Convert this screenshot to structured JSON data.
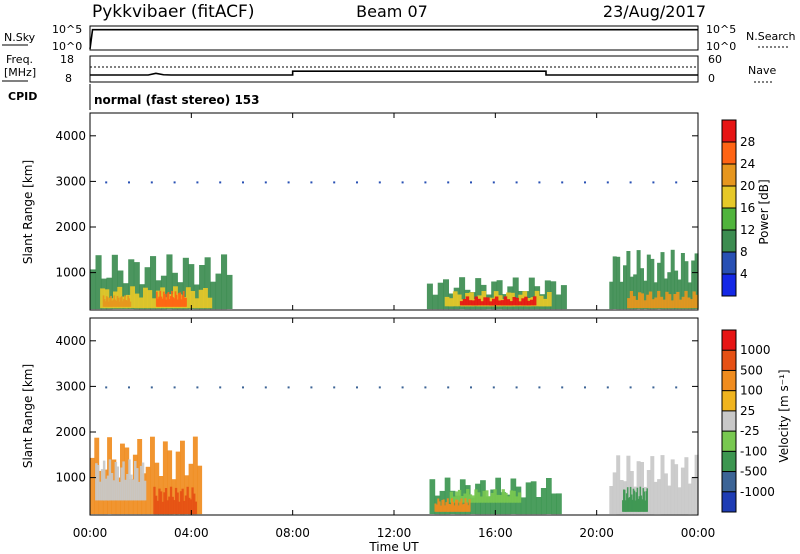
{
  "header": {
    "radar": "Pykkvibaer (fitACF)",
    "beam": "Beam 07",
    "date": "23/Aug/2017"
  },
  "strips": {
    "nsky_label": "N.Sky",
    "nsky_ticks": [
      "10^5",
      "10^0"
    ],
    "nsearch_label": "N.Search",
    "nsearch_ticks": [
      "10^5",
      "10^0"
    ],
    "freq_label_top": "Freq.",
    "freq_label_bottom": "[MHz]",
    "freq_ticks": [
      "18",
      "8"
    ],
    "nave_label": "Nave",
    "nave_ticks": [
      "60",
      "0"
    ],
    "cpid_label": "CPID",
    "cpid_text": "normal (fast stereo) 153"
  },
  "axes": {
    "ylabel": "Slant Range [km]",
    "yticks": [
      "1000",
      "2000",
      "3000",
      "4000"
    ],
    "xticks": [
      "00:00",
      "04:00",
      "08:00",
      "12:00",
      "16:00",
      "20:00",
      "00:00"
    ],
    "xlabel": "Time UT"
  },
  "colorbars": {
    "power": {
      "label": "Power [dB]",
      "ticks": [
        "4",
        "8",
        "12",
        "16",
        "20",
        "24",
        "28"
      ],
      "colors": [
        "#1428e6",
        "#2850b4",
        "#3c8c50",
        "#50b43c",
        "#e6c828",
        "#e6961e",
        "#ff6414",
        "#e61414"
      ]
    },
    "velocity": {
      "label": "Velocity [m s⁻¹]",
      "ticks": [
        "1000",
        "500",
        "100",
        "25",
        "-25",
        "-100",
        "-500",
        "-1000"
      ],
      "colors": [
        "#1e3cb4",
        "#3c6496",
        "#3c9650",
        "#78c850",
        "#c8c8c8",
        "#f0b41e",
        "#f08c1e",
        "#e65014",
        "#e61414"
      ]
    }
  },
  "chart_data": [
    {
      "type": "line",
      "title": "N.Sky / N.Search",
      "x_range_hours": [
        0,
        24
      ],
      "series": [
        {
          "x": [
            0,
            0.1,
            0.2,
            24
          ],
          "y_log10": [
            0,
            4.6,
            4.6,
            4.6
          ]
        }
      ]
    },
    {
      "type": "line",
      "title": "Freq / Nave",
      "x_range_hours": [
        0,
        24
      ],
      "series": [
        {
          "x": [
            0,
            2.3,
            2.6,
            2.9,
            3.2,
            8.0,
            8.0,
            18.0,
            18.0,
            24
          ],
          "y": [
            10.5,
            10.5,
            11.2,
            10.6,
            10.5,
            10.5,
            12.1,
            12.1,
            10.5,
            10.5
          ]
        }
      ]
    },
    {
      "type": "heatmap",
      "title": "Power",
      "x_range_hours": [
        0,
        24
      ],
      "y_range_km": [
        180,
        4500
      ],
      "regions": [
        {
          "x0": 0.0,
          "x1": 5.6,
          "y0": 200,
          "y1": 1400,
          "level": 2
        },
        {
          "x0": 0.4,
          "x1": 4.8,
          "y0": 220,
          "y1": 700,
          "level": 4
        },
        {
          "x0": 0.5,
          "x1": 1.6,
          "y0": 250,
          "y1": 500,
          "level": 5
        },
        {
          "x0": 2.6,
          "x1": 3.8,
          "y0": 250,
          "y1": 600,
          "level": 6
        },
        {
          "x0": 13.3,
          "x1": 18.8,
          "y0": 200,
          "y1": 900,
          "level": 2
        },
        {
          "x0": 14.0,
          "x1": 18.2,
          "y0": 260,
          "y1": 600,
          "level": 4
        },
        {
          "x0": 14.6,
          "x1": 17.6,
          "y0": 280,
          "y1": 480,
          "level": 7
        },
        {
          "x0": 20.5,
          "x1": 24.0,
          "y0": 200,
          "y1": 1500,
          "level": 2
        },
        {
          "x0": 21.2,
          "x1": 24.0,
          "y0": 220,
          "y1": 600,
          "level": 5
        }
      ]
    },
    {
      "type": "heatmap",
      "title": "Velocity",
      "x_range_hours": [
        0,
        24
      ],
      "y_range_km": [
        180,
        4500
      ],
      "regions": [
        {
          "x0": 0.0,
          "x1": 4.4,
          "y0": 200,
          "y1": 1900,
          "level": 6
        },
        {
          "x0": 0.2,
          "x1": 2.2,
          "y0": 500,
          "y1": 1400,
          "level": 4
        },
        {
          "x0": 2.5,
          "x1": 4.2,
          "y0": 200,
          "y1": 800,
          "level": 7
        },
        {
          "x0": 13.4,
          "x1": 18.6,
          "y0": 200,
          "y1": 1000,
          "level": 2
        },
        {
          "x0": 14.2,
          "x1": 17.0,
          "y0": 450,
          "y1": 750,
          "level": 3
        },
        {
          "x0": 13.6,
          "x1": 15.0,
          "y0": 250,
          "y1": 550,
          "level": 6
        },
        {
          "x0": 20.5,
          "x1": 24.0,
          "y0": 200,
          "y1": 1500,
          "level": 4
        },
        {
          "x0": 21.0,
          "x1": 22.0,
          "y0": 250,
          "y1": 800,
          "level": 2
        }
      ]
    }
  ]
}
